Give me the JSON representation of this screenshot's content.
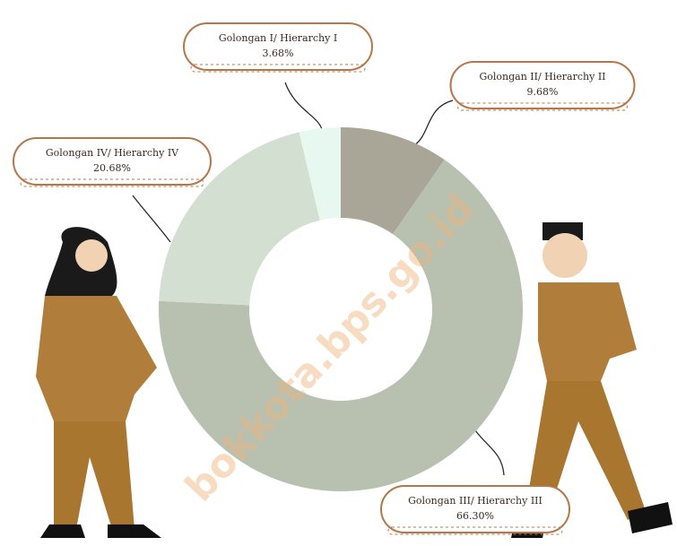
{
  "chart_data": {
    "type": "donut",
    "categories": [
      "Golongan II/ Hierarchy II",
      "Golongan III/ Hierarchy III",
      "Golongan IV/ Hierarchy IV",
      "Golongan I/ Hierarchy I"
    ],
    "values": [
      9.68,
      66.3,
      20.68,
      3.68
    ],
    "value_labels": [
      "9.68%",
      "66.30%",
      "20.68%",
      "3.68%"
    ],
    "colors": [
      "#a9a698",
      "#b8c1b0",
      "#d2dfd1",
      "#e7f8f1"
    ],
    "watermark": "bokkota.bps.go.id"
  }
}
